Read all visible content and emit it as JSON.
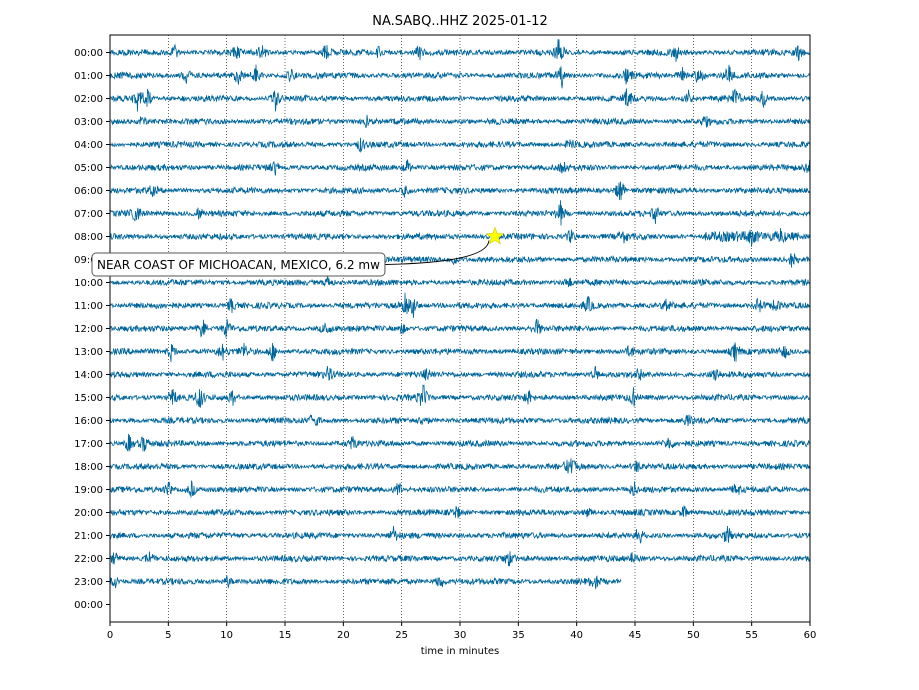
{
  "chart_data": {
    "type": "line",
    "title": "NA.SABQ..HHZ 2025-01-12",
    "xlabel": "time in minutes",
    "ylabel": "",
    "xlim": [
      0,
      60
    ],
    "x_ticks": [
      0,
      5,
      10,
      15,
      20,
      25,
      30,
      35,
      40,
      45,
      50,
      55,
      60
    ],
    "x_tick_labels": [
      "0",
      "5",
      "10",
      "15",
      "20",
      "25",
      "30",
      "35",
      "40",
      "45",
      "50",
      "55",
      "60"
    ],
    "grid": "x-dotted",
    "row_labels": [
      "00:00",
      "01:00",
      "02:00",
      "03:00",
      "04:00",
      "05:00",
      "06:00",
      "07:00",
      "08:00",
      "09:00",
      "10:00",
      "11:00",
      "12:00",
      "13:00",
      "14:00",
      "15:00",
      "16:00",
      "17:00",
      "18:00",
      "19:00",
      "20:00",
      "21:00",
      "22:00",
      "23:00",
      "00:00"
    ],
    "trace_color": "#00669c",
    "rows_with_data": 24,
    "last_row_end_minute": 43.8,
    "events": [
      {
        "label": "NEAR COAST OF MICHOACAN, MEXICO, 6.2 mw",
        "row": "08:00",
        "minute": 33,
        "marker": "star",
        "marker_color": "#ffff00"
      }
    ],
    "bursts": [
      [
        [
          38.5,
          2.8
        ],
        [
          48.5,
          1.6
        ],
        [
          59,
          1.6
        ],
        [
          5.5,
          1.3
        ],
        [
          10.8,
          1.4
        ],
        [
          13,
          1.3
        ],
        [
          18.5,
          1.6
        ],
        [
          23,
          1.2
        ],
        [
          26.5,
          1.2
        ]
      ],
      [
        [
          6.5,
          1.6
        ],
        [
          11,
          1.5
        ],
        [
          12.5,
          1.6
        ],
        [
          15.5,
          1.2
        ],
        [
          38.7,
          2.2
        ],
        [
          44.3,
          1.6
        ],
        [
          49,
          1.4
        ],
        [
          50.5,
          2.0
        ],
        [
          53,
          1.8
        ]
      ],
      [
        [
          2.4,
          2.2
        ],
        [
          3.2,
          1.8
        ],
        [
          14.2,
          2.4
        ],
        [
          44.4,
          2.2
        ],
        [
          49.6,
          1.3
        ],
        [
          53.6,
          2.0
        ],
        [
          56,
          1.4
        ]
      ],
      [
        [
          2.8,
          1.1
        ],
        [
          22,
          1.0
        ],
        [
          51,
          1.0
        ]
      ],
      [
        [
          21.5,
          1.3
        ],
        [
          39.5,
          1.1
        ]
      ],
      [
        [
          14.2,
          1.2
        ],
        [
          25.5,
          1.1
        ],
        [
          38.8,
          1.0
        ],
        [
          59.9,
          1.8
        ]
      ],
      [
        [
          3.7,
          1.1
        ],
        [
          25.3,
          1.1
        ],
        [
          43.7,
          2.6
        ]
      ],
      [
        [
          2.3,
          1.9
        ],
        [
          7.7,
          1.4
        ],
        [
          38.6,
          2.0
        ],
        [
          46.8,
          1.6
        ]
      ],
      [
        [
          39.5,
          1.5
        ],
        [
          44,
          1.0
        ],
        [
          55,
          1.0
        ],
        [
          57.5,
          1.0
        ]
      ],
      [
        [
          29.5,
          1.1
        ],
        [
          58.5,
          1.4
        ]
      ],
      [
        [
          18.7,
          1.2
        ],
        [
          39.3,
          1.0
        ]
      ],
      [
        [
          10.4,
          1.3
        ],
        [
          25.3,
          2.1
        ],
        [
          26.0,
          1.7
        ],
        [
          41,
          1.4
        ],
        [
          47.7,
          1.3
        ],
        [
          55.6,
          1.4
        ],
        [
          57,
          1.2
        ]
      ],
      [
        [
          7.9,
          1.9
        ],
        [
          10,
          1.4
        ],
        [
          18.5,
          1.6
        ],
        [
          25,
          1.2
        ],
        [
          36.6,
          1.8
        ]
      ],
      [
        [
          5.3,
          1.7
        ],
        [
          9.6,
          1.4
        ],
        [
          11.5,
          1.5
        ],
        [
          13.9,
          1.8
        ],
        [
          44.6,
          1.3
        ],
        [
          53.6,
          1.8
        ],
        [
          57.8,
          1.4
        ]
      ],
      [
        [
          18.7,
          1.4
        ],
        [
          27.2,
          1.2
        ],
        [
          41.6,
          1.2
        ],
        [
          45.3,
          1.3
        ],
        [
          51.9,
          1.6
        ]
      ],
      [
        [
          5.4,
          1.9
        ],
        [
          7.7,
          2.2
        ],
        [
          10.5,
          1.3
        ],
        [
          26.8,
          2.6
        ],
        [
          35.9,
          1.3
        ],
        [
          44.9,
          1.4
        ]
      ],
      [
        [
          17.5,
          2.0
        ],
        [
          26.9,
          1.3
        ],
        [
          49.5,
          1.2
        ]
      ],
      [
        [
          1.6,
          1.8
        ],
        [
          2.9,
          1.6
        ],
        [
          20.8,
          1.3
        ],
        [
          47.9,
          1.3
        ]
      ],
      [
        [
          39.3,
          1.3
        ],
        [
          39.7,
          1.3
        ],
        [
          45.1,
          1.2
        ]
      ],
      [
        [
          5,
          1.2
        ],
        [
          7,
          1.6
        ],
        [
          24.7,
          1.4
        ],
        [
          44.9,
          1.3
        ],
        [
          53.7,
          1.2
        ]
      ],
      [
        [
          29.7,
          1.2
        ],
        [
          41,
          1.0
        ],
        [
          49.2,
          1.2
        ]
      ],
      [
        [
          24.3,
          1.3
        ],
        [
          45.3,
          1.6
        ],
        [
          52.9,
          1.5
        ]
      ],
      [
        [
          0.4,
          1.1
        ],
        [
          3.4,
          1.1
        ],
        [
          34.2,
          1.3
        ],
        [
          44.8,
          1.0
        ]
      ],
      [
        [
          0.4,
          1.5
        ],
        [
          10.1,
          1.1
        ],
        [
          28.3,
          1.5
        ],
        [
          41.5,
          1.3
        ]
      ]
    ]
  }
}
